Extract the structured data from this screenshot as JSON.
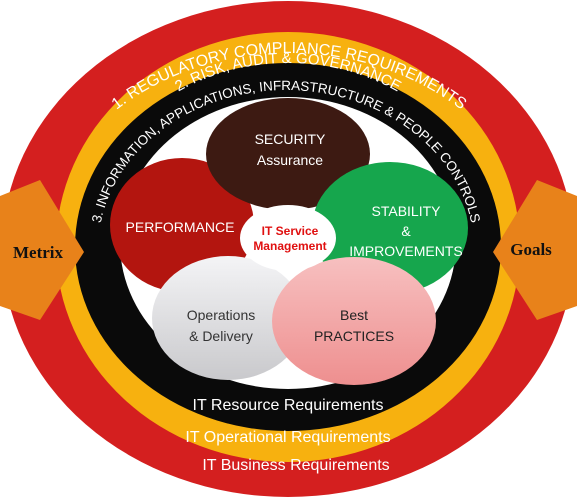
{
  "rings": {
    "outer": {
      "text": "1. REGULATORY COMPLIANCE REQUIREMENTS",
      "bottom_text": "IT Business Requirements",
      "color": "#d41f1f"
    },
    "middle": {
      "text": "2. RISK, AUDIT & GOVERNANCE",
      "bottom_text": "IT Operational Requirements",
      "color": "#f7b10f"
    },
    "inner": {
      "text": "3. INFORMATION, APPLICATIONS, INFRASTRUCTURE & PEOPLE CONTROLS",
      "bottom_text": "IT Resource Requirements",
      "color": "#0a0a0a"
    }
  },
  "side_labels": {
    "left": "Metrix",
    "right": "Goals",
    "arrow_color": "#e8821a"
  },
  "petals": {
    "security": {
      "line1": "SECURITY",
      "line2": "Assurance",
      "color": "#3d1a12"
    },
    "performance": {
      "line1": "PERFORMANCE",
      "color": "#b3150f"
    },
    "stability": {
      "line1": "STABILITY",
      "line2": "&",
      "line3": "IMPROVEMENTS",
      "color": "#16a64d"
    },
    "operations": {
      "line1": "Operations",
      "line2": "& Delivery",
      "color": "#dcdcde"
    },
    "best_practices": {
      "line1": "Best",
      "line2": "PRACTICES",
      "color": "#f2a3a3"
    }
  },
  "center": {
    "line1": "IT Service",
    "line2": "Management",
    "text_color": "#e01010"
  }
}
